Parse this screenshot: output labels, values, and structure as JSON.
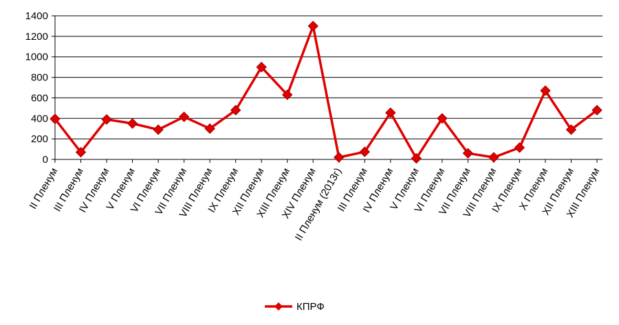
{
  "chart_data": {
    "type": "line",
    "categories": [
      "II Пленум",
      "III Пленум",
      "IV Пленум",
      "V Пленум",
      "VI Пленум",
      "VII Пленум",
      "VIII Пленум",
      "IX Пленум",
      "XII Пленум",
      "XIII Пленум",
      "XIV Пленум",
      "II Пленум (2013г)",
      "III Пленум",
      "IV Пленум",
      "V Пленум",
      "VI Пленум",
      "VII Пленум",
      "VIII Пленум",
      "IX Пленум",
      "X Пленум",
      "XII Пленум",
      "XIII Пленум"
    ],
    "series": [
      {
        "name": "КПРФ",
        "color": "#e00000",
        "values": [
          395,
          70,
          390,
          350,
          290,
          415,
          300,
          480,
          900,
          630,
          1300,
          20,
          74,
          455,
          10,
          400,
          60,
          20,
          115,
          670,
          290,
          480
        ]
      }
    ],
    "ylim": [
      0,
      1400
    ],
    "yticks": [
      0,
      200,
      400,
      600,
      800,
      1000,
      1200,
      1400
    ],
    "grid": true,
    "legend": "bottom"
  }
}
